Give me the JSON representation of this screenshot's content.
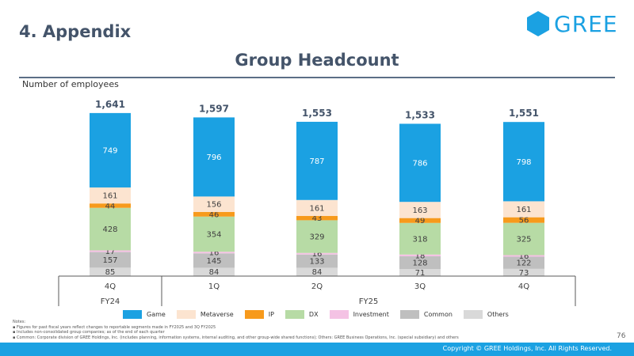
{
  "section_title": "4. Appendix",
  "logo_text": "GREE",
  "slide_title": "Group Headcount",
  "ylabel": "Number of employees",
  "chart_data": {
    "type": "stacked-bar",
    "title": "Group Headcount",
    "ylabel": "Number of employees",
    "categories": [
      "4Q",
      "1Q",
      "2Q",
      "3Q",
      "4Q"
    ],
    "fiscal_years": [
      {
        "label": "FY24",
        "span": 1
      },
      {
        "label": "FY25",
        "span": 4
      }
    ],
    "totals": [
      1641,
      1597,
      1553,
      1533,
      1551
    ],
    "ylim": [
      0,
      1700
    ],
    "series": [
      {
        "name": "Others",
        "color": "#d9d9d9",
        "values": [
          85,
          84,
          84,
          71,
          73
        ]
      },
      {
        "name": "Common",
        "color": "#bfbfbf",
        "values": [
          157,
          145,
          133,
          128,
          122
        ]
      },
      {
        "name": "Investment",
        "color": "#f4c2e4",
        "values": [
          17,
          16,
          16,
          18,
          16
        ]
      },
      {
        "name": "DX",
        "color": "#b7dba5",
        "values": [
          428,
          354,
          329,
          318,
          325
        ]
      },
      {
        "name": "IP",
        "color": "#f79a1c",
        "values": [
          44,
          46,
          43,
          49,
          56
        ]
      },
      {
        "name": "Metaverse",
        "color": "#fce4d0",
        "values": [
          161,
          156,
          161,
          163,
          161
        ]
      },
      {
        "name": "Game",
        "color": "#1ba1e2",
        "values": [
          749,
          796,
          787,
          786,
          798
        ]
      }
    ]
  },
  "legend": [
    {
      "name": "Game",
      "color": "#1ba1e2"
    },
    {
      "name": "Metaverse",
      "color": "#fce4d0"
    },
    {
      "name": "IP",
      "color": "#f79a1c"
    },
    {
      "name": "DX",
      "color": "#b7dba5"
    },
    {
      "name": "Investment",
      "color": "#f4c2e4"
    },
    {
      "name": "Common",
      "color": "#bfbfbf"
    },
    {
      "name": "Others",
      "color": "#d9d9d9"
    }
  ],
  "notes": {
    "heading": "Notes:",
    "lines": [
      "Figures for past fiscal years reflect changes to reportable segments made in FY2025 and 3Q FY2025",
      "Includes non-consolidated group companies; as of the end of each quarter",
      "Common: Corporate division of GREE Holdings, Inc. (includes planning, information systems, internal auditing, and other group-wide shared functions); Others: GREE Business Operations, Inc. (special subsidiary) and others"
    ]
  },
  "page_number": "76",
  "copyright": "Copyright © GREE Holdings, Inc. All Rights Reserved."
}
